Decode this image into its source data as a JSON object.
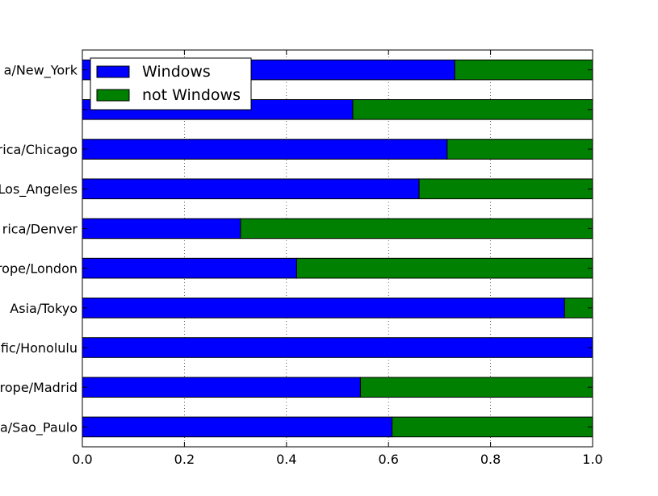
{
  "chart_data": {
    "type": "bar",
    "orientation": "horizontal",
    "stacked": true,
    "categories": [
      "America/New_York",
      "",
      "America/Chicago",
      "America/Los_Angeles",
      "America/Denver",
      "Europe/London",
      "Asia/Tokyo",
      "Pacific/Honolulu",
      "Europe/Madrid",
      "America/Sao_Paulo"
    ],
    "category_labels_shown": [
      "a/New_York",
      "",
      "rica/Chicago",
      "Los_Angeles",
      "rica/Denver",
      "rope/London",
      "Asia/Tokyo",
      "fic/Honolulu",
      "rope/Madrid",
      "a/Sao_Paulo"
    ],
    "series": [
      {
        "name": "Windows",
        "color": "#0000ff",
        "values": [
          0.73,
          0.53,
          0.715,
          0.66,
          0.31,
          0.42,
          0.945,
          1.0,
          0.545,
          0.607
        ]
      },
      {
        "name": "not Windows",
        "color": "#008000",
        "values": [
          0.27,
          0.47,
          0.285,
          0.34,
          0.69,
          0.58,
          0.055,
          0.0,
          0.455,
          0.393
        ]
      }
    ],
    "title": "",
    "xlabel": "",
    "ylabel": "",
    "xlim": [
      0.0,
      1.0
    ],
    "xticks": [
      "0.0",
      "0.2",
      "0.4",
      "0.6",
      "0.8",
      "1.0"
    ],
    "grid": "vertical dotted",
    "legend_position": "top-left"
  }
}
